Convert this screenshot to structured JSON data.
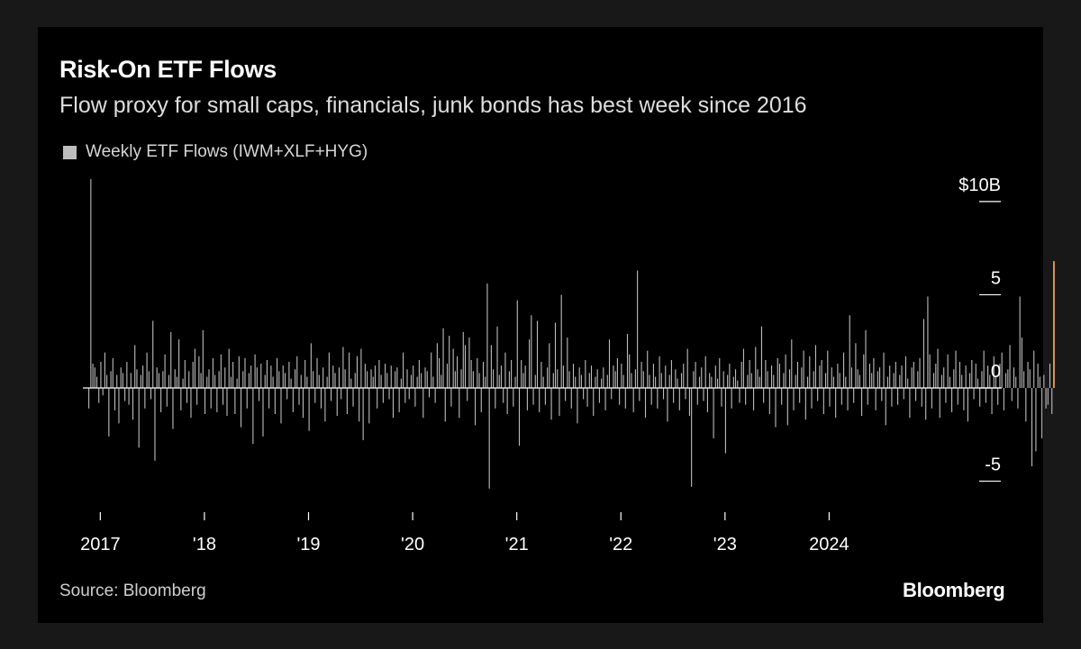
{
  "colors": {
    "background": "#000000",
    "bar": "#bdbdbd",
    "highlight": "#f2a33a",
    "zero_line": "#ffffff",
    "text": "#ffffff"
  },
  "footer": {
    "source": "Source: Bloomberg",
    "brand": "Bloomberg"
  },
  "chart_data": {
    "type": "bar",
    "title": "Risk-On ETF Flows",
    "subtitle": "Flow proxy for small caps, financials, junk bonds has best week since 2016",
    "legend": [
      "Weekly ETF Flows (IWM+XLF+HYG)"
    ],
    "legend_position": "top-left",
    "x_tick_labels": [
      "2017",
      "'18",
      "'19",
      "'20",
      "'21",
      "'22",
      "'23",
      "2024"
    ],
    "x_ticks": [
      2017,
      2018,
      2019,
      2020,
      2021,
      2022,
      2023,
      2024
    ],
    "xlim": [
      2016.85,
      2025.0
    ],
    "y_axis_position": "right",
    "y_tick_labels": [
      "$10B",
      "5",
      "0",
      "-5"
    ],
    "y_ticks": [
      10,
      5,
      0,
      -5
    ],
    "ylim": [
      -5.6,
      11.2
    ],
    "grid": false,
    "highlight_last": true,
    "series": [
      {
        "name": "Weekly ETF Flows (IWM+XLF+HYG)",
        "start": 2016.89,
        "step": 0.01923,
        "unit": "USD billions",
        "values": [
          -1.1,
          11.2,
          1.3,
          1.1,
          0.6,
          -0.8,
          1.4,
          -0.4,
          1.9,
          0.7,
          -2.6,
          0.9,
          1.6,
          -1.2,
          0.7,
          -1.9,
          1.1,
          0.8,
          -0.7,
          1.4,
          -0.9,
          0.8,
          -1.7,
          2.3,
          1.0,
          -3.2,
          0.7,
          1.2,
          -1.1,
          1.9,
          0.9,
          -0.6,
          3.6,
          -3.9,
          1.1,
          0.8,
          -1.3,
          0.9,
          1.8,
          -1.0,
          0.7,
          3.0,
          -2.2,
          1.0,
          0.6,
          2.6,
          -1.2,
          0.5,
          1.5,
          -0.8,
          0.9,
          -1.6,
          1.4,
          2.1,
          -0.9,
          1.7,
          0.8,
          3.1,
          -1.4,
          0.6,
          1.0,
          -1.1,
          1.6,
          0.7,
          -1.3,
          0.9,
          1.8,
          -0.9,
          1.1,
          -1.5,
          2.1,
          0.6,
          1.4,
          -1.4,
          0.5,
          1.7,
          -2.1,
          0.9,
          1.6,
          -1.1,
          0.8,
          1.2,
          -3.0,
          1.8,
          1.1,
          -0.7,
          1.3,
          -2.6,
          0.7,
          1.5,
          -1.1,
          1.2,
          0.6,
          -1.4,
          1.6,
          0.9,
          -1.9,
          1.2,
          0.8,
          -0.6,
          1.4,
          0.5,
          -1.3,
          1.0,
          1.7,
          -0.9,
          0.7,
          -1.6,
          1.5,
          0.6,
          -2.3,
          2.4,
          0.9,
          -0.8,
          1.6,
          0.7,
          -1.1,
          1.1,
          -1.8,
          0.6,
          1.9,
          -0.7,
          1.2,
          0.8,
          -1.5,
          1.1,
          -0.6,
          2.2,
          1.0,
          -1.4,
          1.9,
          0.5,
          -1.0,
          0.8,
          1.7,
          -1.8,
          2.1,
          -2.8,
          1.3,
          0.9,
          -1.9,
          1.0,
          0.6,
          1.2,
          -1.1,
          1.5,
          0.7,
          -0.8,
          1.3,
          0.8,
          -0.6,
          1.2,
          -1.6,
          0.9,
          1.1,
          -1.3,
          0.5,
          1.9,
          -0.8,
          1.0,
          -0.6,
          0.7,
          1.2,
          -1.0,
          0.6,
          1.5,
          0.8,
          -1.6,
          1.1,
          0.9,
          -0.5,
          1.9,
          0.6,
          -0.8,
          2.4,
          1.6,
          0.7,
          3.2,
          -1.8,
          1.3,
          2.8,
          -1.0,
          2.1,
          0.9,
          1.7,
          -1.6,
          1.0,
          3.0,
          2.3,
          -0.7,
          2.7,
          1.5,
          0.9,
          -2.0,
          1.6,
          0.8,
          -1.3,
          1.4,
          0.6,
          5.6,
          -5.4,
          2.3,
          1.0,
          -1.1,
          3.3,
          0.7,
          1.2,
          -0.8,
          1.9,
          -1.4,
          0.9,
          1.5,
          -1.0,
          0.6,
          4.7,
          -3.1,
          1.5,
          0.8,
          1.2,
          -1.2,
          2.6,
          3.9,
          -0.9,
          0.7,
          3.6,
          -1.3,
          1.4,
          0.6,
          -0.9,
          1.1,
          2.4,
          -1.7,
          0.8,
          3.5,
          1.0,
          -1.5,
          5.0,
          1.2,
          -0.7,
          2.7,
          0.9,
          -1.1,
          1.3,
          0.6,
          -1.9,
          1.1,
          0.7,
          -0.6,
          1.5,
          -1.0,
          0.8,
          1.2,
          -1.5,
          0.6,
          1.0,
          -0.8,
          0.5,
          1.1,
          -1.2,
          0.7,
          2.6,
          -0.6,
          1.2,
          0.9,
          1.6,
          -0.9,
          1.3,
          0.7,
          -1.1,
          2.9,
          1.8,
          0.8,
          -1.3,
          1.0,
          6.3,
          -0.7,
          1.4,
          0.9,
          -1.6,
          2.0,
          0.7,
          -0.9,
          1.3,
          0.6,
          -1.1,
          1.7,
          0.8,
          -0.6,
          1.2,
          -1.8,
          0.7,
          1.5,
          -0.8,
          1.0,
          0.5,
          -1.2,
          0.8,
          1.3,
          -0.6,
          2.1,
          -1.5,
          -5.3,
          0.9,
          1.4,
          -0.9,
          0.6,
          1.1,
          -0.7,
          1.7,
          -1.3,
          0.8,
          0.6,
          -2.7,
          1.2,
          0.5,
          1.6,
          -1.0,
          0.9,
          -3.5,
          0.7,
          1.3,
          -1.1,
          0.6,
          1.0,
          0.4,
          -0.8,
          1.4,
          2.1,
          -0.9,
          0.7,
          1.5,
          0.8,
          -1.2,
          2.2,
          1.0,
          0.6,
          3.3,
          -0.8,
          1.5,
          0.9,
          -1.4,
          1.2,
          0.7,
          -2.1,
          1.6,
          1.3,
          -0.9,
          0.8,
          1.8,
          -2.0,
          1.0,
          2.6,
          -1.2,
          0.7,
          1.4,
          -0.8,
          1.1,
          2.0,
          -1.7,
          0.6,
          1.7,
          -1.1,
          0.9,
          2.3,
          -0.7,
          1.2,
          1.5,
          -1.4,
          0.8,
          2.0,
          -1.0,
          1.1,
          0.6,
          -1.6,
          1.3,
          0.8,
          -0.9,
          1.9,
          0.6,
          -1.2,
          3.9,
          1.1,
          -0.8,
          2.4,
          1.0,
          0.7,
          -1.5,
          1.8,
          3.1,
          -0.9,
          1.3,
          0.8,
          1.6,
          -1.2,
          0.9,
          1.1,
          -0.7,
          1.9,
          -2.0,
          0.6,
          1.2,
          -1.0,
          0.8,
          1.4,
          -0.9,
          0.7,
          1.2,
          -0.6,
          1.7,
          0.5,
          -1.6,
          1.1,
          1.4,
          -0.7,
          0.9,
          1.6,
          -1.0,
          3.7,
          -1.7,
          4.9,
          1.8,
          -1.1,
          0.8,
          1.3,
          2.1,
          -1.6,
          0.7,
          1.1,
          -0.8,
          1.8,
          0.6,
          -1.3,
          1.0,
          2.0,
          -0.9,
          1.4,
          0.7,
          -1.2,
          1.2,
          -1.8,
          0.8,
          1.5,
          -0.6,
          1.3,
          0.5,
          -1.0,
          0.9,
          2.0,
          -0.8,
          1.2,
          0.7,
          -1.4,
          1.7,
          0.6,
          -0.9,
          1.3,
          1.9,
          -1.2,
          0.8,
          1.0,
          2.3,
          -0.7,
          1.1,
          0.6,
          -1.1,
          4.9,
          2.7,
          0.9,
          -1.8,
          1.4,
          1.0,
          -4.2,
          2.0,
          -3.4,
          1.3,
          0.6,
          -2.7,
          0.7,
          -1.1,
          -0.9,
          1.3,
          -1.4,
          6.8
        ]
      }
    ]
  }
}
